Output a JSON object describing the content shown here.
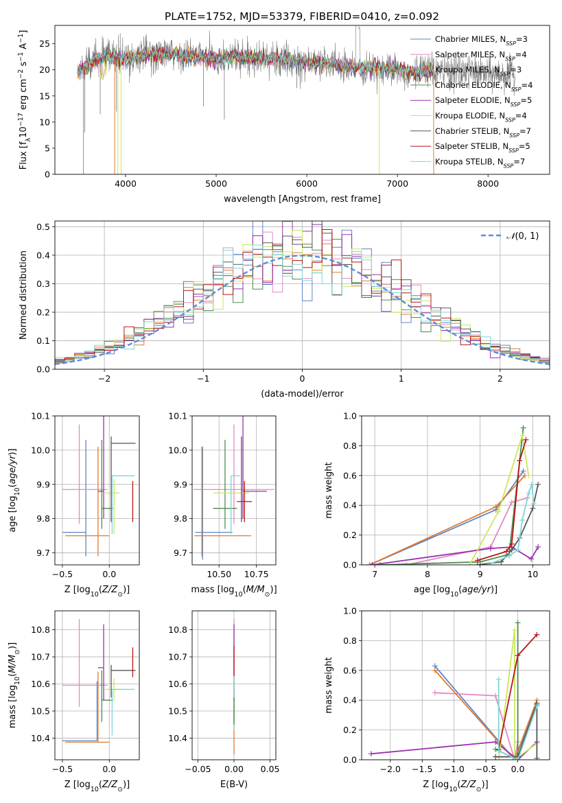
{
  "figure": {
    "title": "PLATE=1752, MJD=53379, FIBERID=0410, z=0.092"
  },
  "series_styles": [
    {
      "name": "Chabrier MILES",
      "nssp": "3",
      "color": "#5b84c9"
    },
    {
      "name": "Salpeter MILES",
      "nssp": "4",
      "color": "#e18ac1"
    },
    {
      "name": "Kroupa MILES",
      "nssp": "3",
      "color": "#e07b2e"
    },
    {
      "name": "Chabrier ELODIE",
      "nssp": "4",
      "color": "#4f8a4f"
    },
    {
      "name": "Salpeter ELODIE",
      "nssp": "5",
      "color": "#9b2fb0"
    },
    {
      "name": "Kroupa ELODIE",
      "nssp": "4",
      "color": "#c9e85a"
    },
    {
      "name": "Chabrier STELIB",
      "nssp": "7",
      "color": "#555555"
    },
    {
      "name": "Salpeter STELIB",
      "nssp": "5",
      "color": "#b81414"
    },
    {
      "name": "Kroupa STELIB",
      "nssp": "7",
      "color": "#7ed6d6"
    }
  ],
  "chart_data": [
    {
      "id": "spectrum",
      "type": "line",
      "title": "PLATE=1752, MJD=53379, FIBERID=0410, z=0.092",
      "xlabel": "wavelength [Angstrom, rest frame]",
      "ylabel_prefix": "Flux [f",
      "ylabel_lambda": "λ",
      "ylabel_mid": "10",
      "ylabel_exp": "−17",
      "ylabel_rest": " erg cm",
      "ylabel_exp2": "−2",
      "ylabel_rest2": " s",
      "ylabel_exp3": "−1",
      "ylabel_rest3": " A",
      "ylabel_exp4": "−1",
      "ylabel_end": "]",
      "xlim": [
        3220,
        8680
      ],
      "ylim": [
        0,
        28.5
      ],
      "xticks": [
        4000,
        5000,
        6000,
        7000,
        8000
      ],
      "yticks": [
        0,
        5,
        10,
        15,
        20,
        25
      ],
      "legend": "upper-right",
      "wave_range": [
        3470,
        7400
      ],
      "observed_range": [
        3470,
        8300
      ],
      "level_points": [
        [
          3470,
          19.5
        ],
        [
          3600,
          21.5
        ],
        [
          3800,
          22.5
        ],
        [
          4000,
          22.0
        ],
        [
          4200,
          22.8
        ],
        [
          4500,
          23.0
        ],
        [
          4800,
          22.5
        ],
        [
          5000,
          22.0
        ],
        [
          5200,
          22.5
        ],
        [
          5500,
          22.3
        ],
        [
          5800,
          21.8
        ],
        [
          6000,
          21.5
        ],
        [
          6300,
          21.0
        ],
        [
          6500,
          20.5
        ],
        [
          6800,
          20.5
        ],
        [
          7000,
          20.0
        ],
        [
          7200,
          19.5
        ],
        [
          7400,
          19.8
        ],
        [
          7800,
          19.5
        ],
        [
          8000,
          19.2
        ],
        [
          8300,
          19.0
        ]
      ]
    },
    {
      "id": "residuals",
      "type": "histogram",
      "xlabel": "(data-model)/error",
      "ylabel": "Normed distribution",
      "xlim": [
        -2.5,
        2.5
      ],
      "ylim": [
        0,
        0.52
      ],
      "xticks": [
        -2,
        -1,
        0,
        1,
        2
      ],
      "yticks": [
        0.0,
        0.1,
        0.2,
        0.3,
        0.4,
        0.5
      ],
      "bin_width": 0.1,
      "legend": "upper-right",
      "gaussian_label": "N(0, 1)",
      "gaussian_color": "#5b8bd9"
    },
    {
      "id": "age_vs_Z",
      "type": "errorbar",
      "xlabel": "Z [log10(Z/Z⊙)]",
      "ylabel": "age  [log10(age/yr)]",
      "xlim": [
        -0.58,
        0.32
      ],
      "ylim": [
        9.665,
        10.1
      ],
      "xticks": [
        -0.5,
        0.0
      ],
      "yticks": [
        9.7,
        9.8,
        9.9,
        10.0,
        10.1
      ],
      "points": [
        {
          "s": 0,
          "x": -0.25,
          "xl": 0.25,
          "xh": 0.0,
          "y": 9.76,
          "yl": 0.07,
          "yh": 0.27
        },
        {
          "s": 1,
          "x": -0.32,
          "xl": 0.18,
          "xh": 0.3,
          "y": 9.885,
          "yl": 0.1,
          "yh": 0.19
        },
        {
          "s": 2,
          "x": -0.12,
          "xl": 0.35,
          "xh": 0.12,
          "y": 9.75,
          "yl": 0.06,
          "yh": 0.26
        },
        {
          "s": 3,
          "x": -0.08,
          "xl": 0.0,
          "xh": 0.12,
          "y": 9.83,
          "yl": 0.06,
          "yh": 0.2
        },
        {
          "s": 4,
          "x": -0.06,
          "xl": 0.06,
          "xh": 0.0,
          "y": 9.88,
          "yl": 0.08,
          "yh": 0.22
        },
        {
          "s": 5,
          "x": 0.05,
          "xl": 0.1,
          "xh": 0.06,
          "y": 9.875,
          "yl": 0.12,
          "yh": 0.04
        },
        {
          "s": 6,
          "x": 0.02,
          "xl": 0.0,
          "xh": 0.26,
          "y": 10.02,
          "yl": 0.23,
          "yh": 0.02
        },
        {
          "s": 7,
          "x": 0.25,
          "xl": 0.0,
          "xh": 0.0,
          "y": 9.85,
          "yl": 0.06,
          "yh": 0.06
        },
        {
          "s": 8,
          "x": 0.03,
          "xl": 0.0,
          "xh": 0.24,
          "y": 9.925,
          "yl": 0.17,
          "yh": 0.0
        }
      ]
    },
    {
      "id": "age_vs_mass",
      "type": "errorbar",
      "xlabel": "mass [log10(M/M⊙)]",
      "ylabel": "",
      "xlim": [
        10.32,
        10.88
      ],
      "ylim": [
        9.665,
        10.1
      ],
      "xticks": [
        10.5,
        10.75
      ],
      "yticks": [
        9.7,
        9.8,
        9.9,
        10.0,
        10.1
      ],
      "points": [
        {
          "s": 0,
          "x": 10.39,
          "xl": 0.05,
          "xh": 0.2,
          "y": 9.76,
          "yl": 0.08,
          "yh": 0.25
        },
        {
          "s": 1,
          "x": 10.6,
          "xl": 0.27,
          "xh": 0.27,
          "y": 9.885,
          "yl": 0.1,
          "yh": 0.19
        },
        {
          "s": 2,
          "x": 10.385,
          "xl": 0.05,
          "xh": 0.33,
          "y": 9.75,
          "yl": 0.06,
          "yh": 0.26
        },
        {
          "s": 3,
          "x": 10.54,
          "xl": 0.08,
          "xh": 0.08,
          "y": 9.83,
          "yl": 0.06,
          "yh": 0.2
        },
        {
          "s": 4,
          "x": 10.66,
          "xl": 0.0,
          "xh": 0.16,
          "y": 9.88,
          "yl": 0.08,
          "yh": 0.22
        },
        {
          "s": 5,
          "x": 10.58,
          "xl": 0.12,
          "xh": 0.12,
          "y": 9.875,
          "yl": 0.12,
          "yh": 0.04
        },
        {
          "s": 6,
          "x": 10.65,
          "xl": 0.0,
          "xh": 0.0,
          "y": 10.02,
          "yl": 0.23,
          "yh": 0.02
        },
        {
          "s": 7,
          "x": 10.67,
          "xl": 0.05,
          "xh": 0.05,
          "y": 9.85,
          "yl": 0.06,
          "yh": 0.06
        },
        {
          "s": 8,
          "x": 10.58,
          "xl": 0.0,
          "xh": 0.06,
          "y": 9.925,
          "yl": 0.17,
          "yh": 0.0
        }
      ]
    },
    {
      "id": "weight_vs_age",
      "type": "line",
      "xlabel": "age  [log10(age/yr)]",
      "ylabel": "mass weight",
      "xlim": [
        6.75,
        10.32
      ],
      "ylim": [
        0,
        1.0
      ],
      "xticks": [
        7,
        8,
        9,
        10
      ],
      "yticks": [
        0.0,
        0.2,
        0.4,
        0.6,
        0.8,
        1.0
      ],
      "series": [
        {
          "s": 0,
          "x": [
            6.9,
            9.3,
            9.82
          ],
          "y": [
            0.0,
            0.37,
            0.63
          ]
        },
        {
          "s": 1,
          "x": [
            7.6,
            9.2,
            9.6,
            9.9
          ],
          "y": [
            0.0,
            0.12,
            0.42,
            0.45
          ]
        },
        {
          "s": 2,
          "x": [
            6.9,
            9.3,
            9.85
          ],
          "y": [
            0.0,
            0.39,
            0.6
          ]
        },
        {
          "s": 3,
          "x": [
            7.1,
            9.0,
            9.55,
            9.82
          ],
          "y": [
            0.0,
            0.02,
            0.07,
            0.92
          ]
        },
        {
          "s": 4,
          "x": [
            6.95,
            9.2,
            9.6,
            9.97,
            10.1
          ],
          "y": [
            0.0,
            0.11,
            0.12,
            0.04,
            0.12
          ]
        },
        {
          "s": 5,
          "x": [
            8.8,
            9.35,
            9.8,
            9.92
          ],
          "y": [
            0.0,
            0.36,
            0.87,
            0.6
          ]
        },
        {
          "s": 6,
          "x": [
            8.95,
            9.4,
            9.6,
            9.75,
            10.0,
            10.1
          ],
          "y": [
            0.0,
            0.02,
            0.1,
            0.18,
            0.38,
            0.54
          ]
        },
        {
          "s": 7,
          "x": [
            8.95,
            9.5,
            9.6,
            9.75,
            9.87
          ],
          "y": [
            0.03,
            0.09,
            0.14,
            0.7,
            0.84
          ]
        },
        {
          "s": 8,
          "x": [
            9.15,
            9.55,
            9.72,
            9.8,
            9.92,
            9.98,
            10.02
          ],
          "y": [
            0.0,
            0.06,
            0.1,
            0.3,
            0.48,
            0.54,
            0.41
          ]
        }
      ]
    },
    {
      "id": "mass_vs_Z",
      "type": "errorbar",
      "xlabel": "Z [log10(Z/Z⊙)]",
      "ylabel": "mass [log10(M/M⊙)]",
      "xlim": [
        -0.58,
        0.32
      ],
      "ylim": [
        10.32,
        10.87
      ],
      "xticks": [
        -0.5,
        0.0
      ],
      "yticks": [
        10.4,
        10.5,
        10.6,
        10.7,
        10.8
      ],
      "points": [
        {
          "s": 0,
          "x": -0.13,
          "xl": 0.37,
          "xh": 0.0,
          "y": 10.39,
          "yl": 0.0,
          "yh": 0.22
        },
        {
          "s": 1,
          "x": -0.32,
          "xl": 0.18,
          "xh": 0.3,
          "y": 10.595,
          "yl": 0.08,
          "yh": 0.245
        },
        {
          "s": 2,
          "x": -0.12,
          "xl": 0.35,
          "xh": 0.12,
          "y": 10.385,
          "yl": 0.0,
          "yh": 0.26
        },
        {
          "s": 3,
          "x": -0.08,
          "xl": 0.0,
          "xh": 0.12,
          "y": 10.54,
          "yl": 0.08,
          "yh": 0.11
        },
        {
          "s": 4,
          "x": -0.06,
          "xl": 0.06,
          "xh": 0.0,
          "y": 10.66,
          "yl": 0.12,
          "yh": 0.16
        },
        {
          "s": 5,
          "x": 0.05,
          "xl": 0.1,
          "xh": 0.06,
          "y": 10.58,
          "yl": 0.04,
          "yh": 0.04
        },
        {
          "s": 6,
          "x": 0.02,
          "xl": 0.0,
          "xh": 0.26,
          "y": 10.65,
          "yl": 0.1,
          "yh": 0.02
        },
        {
          "s": 7,
          "x": 0.25,
          "xl": 0.0,
          "xh": 0.0,
          "y": 10.675,
          "yl": 0.05,
          "yh": 0.06
        },
        {
          "s": 8,
          "x": 0.03,
          "xl": 0.0,
          "xh": 0.24,
          "y": 10.58,
          "yl": 0.17,
          "yh": 0.0
        }
      ]
    },
    {
      "id": "mass_vs_ebv",
      "type": "errorbar",
      "xlabel": "E(B-V)",
      "ylabel": "",
      "xlim": [
        -0.058,
        0.058
      ],
      "ylim": [
        10.32,
        10.87
      ],
      "xticks": [
        -0.05,
        0.0,
        0.05
      ],
      "yticks": [
        10.4,
        10.5,
        10.6,
        10.7,
        10.8
      ],
      "points": [
        {
          "s": 1,
          "x": 0.0,
          "xl": 0.0,
          "xh": 0.0,
          "y": 10.6,
          "yl": 0.13,
          "yh": 0.24
        },
        {
          "s": 4,
          "x": 0.0,
          "xl": 0.0,
          "xh": 0.0,
          "y": 10.66,
          "yl": 0.12,
          "yh": 0.16
        },
        {
          "s": 2,
          "x": 0.0,
          "xl": 0.0,
          "xh": 0.0,
          "y": 10.5,
          "yl": 0.16,
          "yh": 0.1
        },
        {
          "s": 8,
          "x": 0.0,
          "xl": 0.0,
          "xh": 0.0,
          "y": 10.55,
          "yl": 0.12,
          "yh": 0.08
        },
        {
          "s": 7,
          "x": 0.0,
          "xl": 0.0,
          "xh": 0.0,
          "y": 10.67,
          "yl": 0.04,
          "yh": 0.07
        },
        {
          "s": 3,
          "x": 0.0,
          "xl": 0.0,
          "xh": 0.0,
          "y": 10.5,
          "yl": 0.05,
          "yh": 0.05
        }
      ]
    },
    {
      "id": "weight_vs_Z",
      "type": "line",
      "xlabel": "Z [log10(Z/Z⊙)]",
      "ylabel": "mass weight",
      "xlim": [
        -2.45,
        0.5
      ],
      "ylim": [
        0,
        1.0
      ],
      "xticks": [
        -2.0,
        -1.5,
        -1.0,
        -0.5,
        0.0
      ],
      "yticks": [
        0.0,
        0.2,
        0.4,
        0.6,
        0.8,
        1.0
      ],
      "series": [
        {
          "s": 0,
          "x": [
            -1.3,
            -0.05,
            0.3
          ],
          "y": [
            0.63,
            0.0,
            0.37
          ]
        },
        {
          "s": 1,
          "x": [
            -1.3,
            -0.35,
            -0.05,
            0.0
          ],
          "y": [
            0.45,
            0.43,
            0.0,
            0.12
          ]
        },
        {
          "s": 2,
          "x": [
            -1.3,
            -0.05,
            0.3
          ],
          "y": [
            0.6,
            0.0,
            0.4
          ]
        },
        {
          "s": 3,
          "x": [
            -0.35,
            0.0,
            0.0
          ],
          "y": [
            0.07,
            0.0,
            0.92
          ]
        },
        {
          "s": 4,
          "x": [
            -2.3,
            -0.35,
            0.0,
            0.3
          ],
          "y": [
            0.04,
            0.12,
            0.0,
            0.12
          ]
        },
        {
          "s": 5,
          "x": [
            -0.3,
            -0.05,
            -0.05,
            0.3
          ],
          "y": [
            0.0,
            0.87,
            0.0,
            0.11
          ]
        },
        {
          "s": 6,
          "x": [
            -0.35,
            0.0,
            0.3,
            0.3
          ],
          "y": [
            0.02,
            0.02,
            0.38,
            0.01
          ]
        },
        {
          "s": 7,
          "x": [
            -0.3,
            0.0,
            0.3
          ],
          "y": [
            0.07,
            0.7,
            0.84
          ]
        },
        {
          "s": 8,
          "x": [
            -0.3,
            -0.3,
            0.0,
            0.3
          ],
          "y": [
            0.54,
            0.06,
            0.0,
            0.36
          ]
        }
      ]
    }
  ]
}
